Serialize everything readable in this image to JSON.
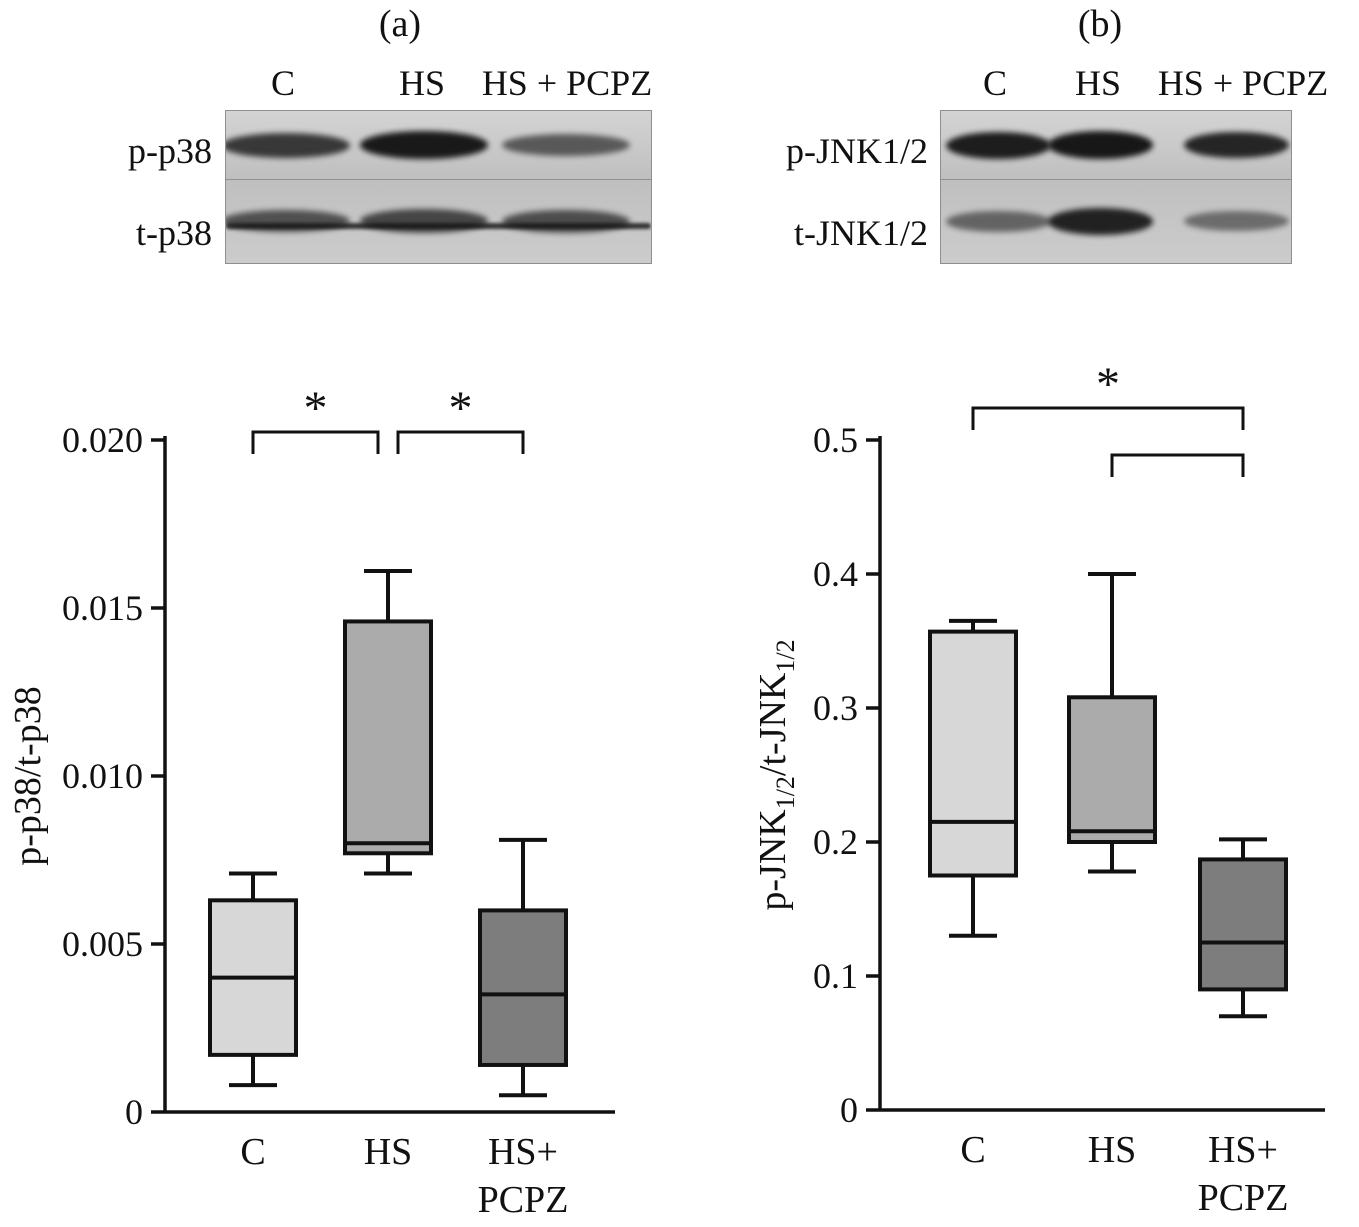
{
  "panels": [
    {
      "label": "(a)"
    },
    {
      "label": "(b)"
    }
  ],
  "blots": [
    {
      "lanes": [
        "C",
        "HS",
        "HS + PCPZ"
      ],
      "rows": [
        {
          "label": "p-p38",
          "bands": [
            0.8,
            0.97,
            0.62
          ]
        },
        {
          "label": "t-p38",
          "bands": [
            0.66,
            0.72,
            0.68
          ],
          "baseline": true
        }
      ]
    },
    {
      "lanes": [
        "C",
        "HS",
        "HS + PCPZ"
      ],
      "rows": [
        {
          "label": "p-JNK1/2",
          "bands": [
            0.95,
            0.98,
            0.9
          ]
        },
        {
          "label": "t-JNK1/2",
          "bands": [
            0.55,
            0.92,
            0.5
          ]
        }
      ]
    }
  ],
  "chart_data": [
    {
      "type": "boxplot",
      "panel": "(a)",
      "ylabel": "p-p38/t-p38",
      "ylabel_parts": [
        {
          "t": "p-p38/t-p38"
        }
      ],
      "ylim": [
        0,
        0.02
      ],
      "yticks": [
        0,
        0.005,
        0.01,
        0.015,
        0.02
      ],
      "ytick_labels": [
        "0",
        "0.005",
        "0.010",
        "0.015",
        "0.020"
      ],
      "categories": [
        "C",
        "HS",
        "HS+\nPCPZ"
      ],
      "boxes": [
        {
          "category": "C",
          "whisker_low": 0.0008,
          "q1": 0.0017,
          "median": 0.004,
          "q3": 0.0063,
          "whisker_high": 0.0071,
          "fill": "#d7d7d7"
        },
        {
          "category": "HS",
          "whisker_low": 0.0071,
          "q1": 0.0077,
          "median": 0.008,
          "q3": 0.0146,
          "whisker_high": 0.0161,
          "fill": "#ababab"
        },
        {
          "category": "HS+PCPZ",
          "whisker_low": 0.0005,
          "q1": 0.0014,
          "median": 0.0035,
          "q3": 0.006,
          "whisker_high": 0.0081,
          "fill": "#7d7d7d"
        }
      ],
      "significance": [
        {
          "from": 0,
          "to": 1,
          "label": "*"
        },
        {
          "from": 1,
          "to": 2,
          "label": "*"
        }
      ]
    },
    {
      "type": "boxplot",
      "panel": "(b)",
      "ylabel": "p-JNK1/2/t-JNK1/2",
      "ylabel_parts": [
        {
          "t": "p-JNK"
        },
        {
          "t": "1/2",
          "sub": true
        },
        {
          "t": "/t-JNK"
        },
        {
          "t": "1/2",
          "sub": true
        }
      ],
      "ylim": [
        0,
        0.5
      ],
      "yticks": [
        0,
        0.1,
        0.2,
        0.3,
        0.4,
        0.5
      ],
      "ytick_labels": [
        "0",
        "0.1",
        "0.2",
        "0.3",
        "0.4",
        "0.5"
      ],
      "categories": [
        "C",
        "HS",
        "HS+\nPCPZ"
      ],
      "boxes": [
        {
          "category": "C",
          "whisker_low": 0.13,
          "q1": 0.175,
          "median": 0.215,
          "q3": 0.357,
          "whisker_high": 0.365,
          "fill": "#d7d7d7"
        },
        {
          "category": "HS",
          "whisker_low": 0.178,
          "q1": 0.2,
          "median": 0.208,
          "q3": 0.308,
          "whisker_high": 0.4,
          "fill": "#ababab"
        },
        {
          "category": "HS+PCPZ",
          "whisker_low": 0.07,
          "q1": 0.09,
          "median": 0.125,
          "q3": 0.187,
          "whisker_high": 0.202,
          "fill": "#7d7d7d"
        }
      ],
      "significance": [
        {
          "from": 0,
          "to": 2,
          "label": "*"
        },
        {
          "from": 1,
          "to": 2,
          "label": ""
        }
      ]
    }
  ]
}
